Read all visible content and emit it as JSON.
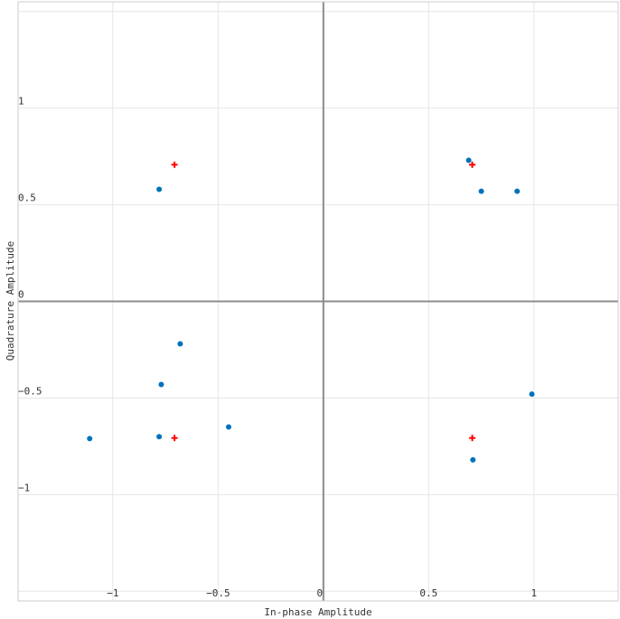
{
  "chart_data": {
    "type": "scatter",
    "title": "",
    "xlabel": "In-phase Amplitude",
    "ylabel": "Quadrature Amplitude",
    "xlim": [
      -1.45,
      1.4
    ],
    "ylim": [
      -1.55,
      1.55
    ],
    "x_ticks": [
      -1,
      -0.5,
      0,
      0.5,
      1
    ],
    "x_tick_labels": [
      "−1",
      "−0.5",
      "0",
      "0.5",
      "1"
    ],
    "y_ticks": [
      1,
      0.5,
      0,
      -0.5,
      -1
    ],
    "y_tick_labels": [
      "1",
      "0.5",
      "0",
      "−0.5",
      "−1"
    ],
    "grid": true,
    "legend": "none",
    "series": [
      {
        "marker": "circle",
        "color": "#0072bd",
        "points": [
          {
            "x": -0.78,
            "y": 0.58
          },
          {
            "x": 0.69,
            "y": 0.73
          },
          {
            "x": 0.75,
            "y": 0.57
          },
          {
            "x": 0.92,
            "y": 0.57
          },
          {
            "x": -0.68,
            "y": -0.22
          },
          {
            "x": -0.77,
            "y": -0.43
          },
          {
            "x": -1.11,
            "y": -0.71
          },
          {
            "x": -0.78,
            "y": -0.7
          },
          {
            "x": -0.45,
            "y": -0.65
          },
          {
            "x": 0.99,
            "y": -0.48
          },
          {
            "x": 0.71,
            "y": -0.82
          }
        ]
      },
      {
        "marker": "plus",
        "color": "#ff0000",
        "points": [
          {
            "x": -0.707,
            "y": 0.707
          },
          {
            "x": 0.707,
            "y": 0.707
          },
          {
            "x": -0.707,
            "y": -0.707
          },
          {
            "x": 0.707,
            "y": -0.707
          }
        ]
      }
    ]
  }
}
